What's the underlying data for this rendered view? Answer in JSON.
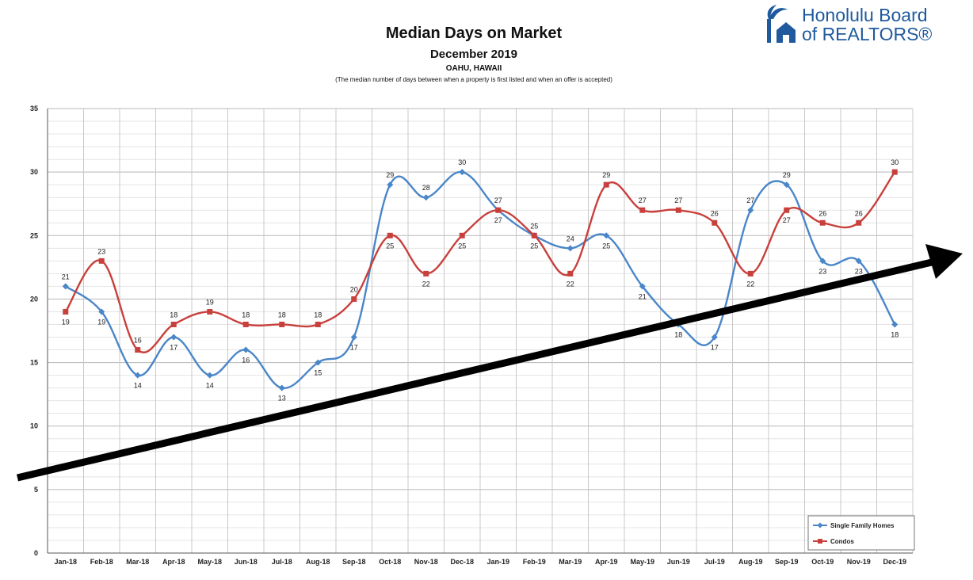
{
  "header": {
    "title": "Median Days on Market",
    "subtitle": "December 2019",
    "location": "OAHU, HAWAII",
    "note": "(The median number of days between when a property is first listed and when an offer is accepted)"
  },
  "logo": {
    "line1": "Honolulu Board",
    "line2": "of REALTORS®"
  },
  "chart_data": {
    "type": "line",
    "categories": [
      "Jan-18",
      "Feb-18",
      "Mar-18",
      "Apr-18",
      "May-18",
      "Jun-18",
      "Jul-18",
      "Aug-18",
      "Sep-18",
      "Oct-18",
      "Nov-18",
      "Dec-18",
      "Jan-19",
      "Feb-19",
      "Mar-19",
      "Apr-19",
      "May-19",
      "Jun-19",
      "Jul-19",
      "Aug-19",
      "Sep-19",
      "Oct-19",
      "Nov-19",
      "Dec-19"
    ],
    "series": [
      {
        "name": "Single Family Homes",
        "color": "#4a86c8",
        "marker": "diamond",
        "values": [
          21,
          19,
          14,
          17,
          14,
          16,
          13,
          15,
          17,
          29,
          28,
          30,
          27,
          25,
          24,
          25,
          21,
          18,
          17,
          27,
          29,
          23,
          23,
          18
        ]
      },
      {
        "name": "Condos",
        "color": "#c8403c",
        "marker": "square",
        "values": [
          19,
          23,
          16,
          18,
          19,
          18,
          18,
          18,
          20,
          25,
          22,
          25,
          27,
          25,
          22,
          29,
          27,
          27,
          26,
          22,
          27,
          26,
          26,
          30
        ]
      }
    ],
    "ylim": [
      0,
      35
    ],
    "yticks": [
      0,
      5,
      10,
      15,
      20,
      25,
      30,
      35
    ],
    "grid": true,
    "legend": "bottom-right",
    "overlay": "upward trend arrow"
  }
}
